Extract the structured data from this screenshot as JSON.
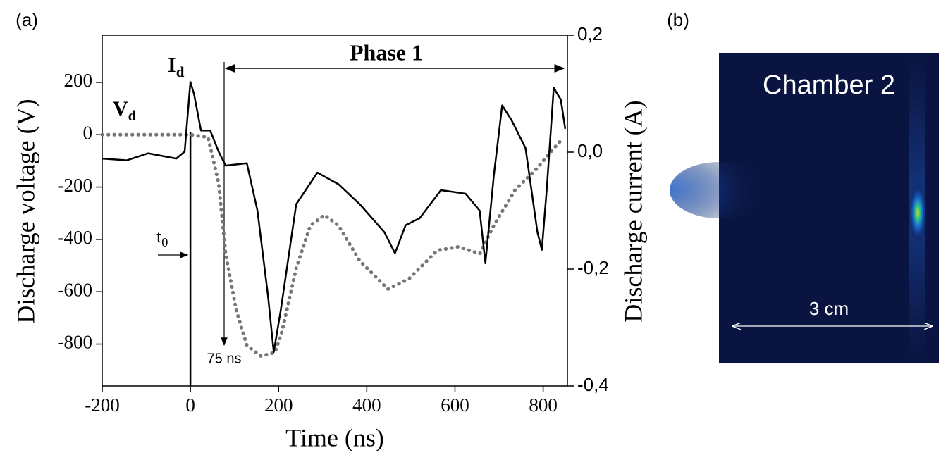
{
  "chart_data": {
    "type": "line",
    "panel_labels": [
      "(a)",
      "(b)"
    ],
    "xlabel": "Time (ns)",
    "ylabel": "Discharge voltage (V)",
    "y2label": "Discharge current (A)",
    "xlim": [
      -200,
      855
    ],
    "xticks": [
      -200,
      0,
      200,
      400,
      600,
      800
    ],
    "ylim": [
      -960,
      380
    ],
    "yticks": [
      200,
      0,
      -200,
      -400,
      -600,
      -800
    ],
    "y2lim": [
      -0.4,
      0.2
    ],
    "y2ticks": [
      {
        "value": 0.2,
        "label": "0,2"
      },
      {
        "value": 0.0,
        "label": "0,0"
      },
      {
        "value": -0.2,
        "label": "-0,2"
      },
      {
        "value": -0.4,
        "label": "-0,4"
      }
    ],
    "series": [
      {
        "name": {
          "main": "V",
          "sub": "d"
        },
        "color": "#777777",
        "style": "dotted",
        "x": [
          -200,
          0,
          40,
          64,
          80,
          104,
          128,
          160,
          192,
          208,
          240,
          272,
          304,
          336,
          384,
          448,
          496,
          560,
          608,
          656,
          688,
          736,
          784,
          832,
          845
        ],
        "values": [
          0,
          0,
          -10,
          -185,
          -455,
          -670,
          -805,
          -846,
          -832,
          -750,
          -510,
          -347,
          -307,
          -347,
          -482,
          -590,
          -550,
          -442,
          -428,
          -455,
          -347,
          -212,
          -132,
          -37,
          -15
        ]
      },
      {
        "name": {
          "main": "I",
          "sub": "d"
        },
        "color": "#000000",
        "style": "solid",
        "axis": "y2",
        "x": [
          -200,
          -144,
          -96,
          -32,
          -13,
          0,
          8,
          24,
          45,
          64,
          80,
          128,
          152,
          176,
          189,
          205,
          240,
          288,
          336,
          384,
          440,
          464,
          488,
          520,
          568,
          624,
          656,
          669,
          688,
          707,
          728,
          760,
          787,
          797,
          808,
          824,
          840,
          850
        ],
        "values": [
          -0.011,
          -0.014,
          -0.002,
          -0.011,
          0.001,
          0.12,
          0.1,
          0.037,
          0.037,
          0.001,
          -0.023,
          -0.019,
          -0.1,
          -0.246,
          -0.342,
          -0.27,
          -0.089,
          -0.035,
          -0.055,
          -0.089,
          -0.137,
          -0.173,
          -0.125,
          -0.113,
          -0.065,
          -0.071,
          -0.1,
          -0.19,
          -0.041,
          0.08,
          0.055,
          0.007,
          -0.137,
          -0.167,
          -0.065,
          0.11,
          0.09,
          0.04
        ]
      }
    ],
    "annotations": {
      "phase": "Phase 1",
      "t0": {
        "main": "t",
        "sub": "0"
      },
      "delay": "75 ns"
    },
    "image": {
      "title": "Chamber 2",
      "scale": "3 cm"
    }
  }
}
